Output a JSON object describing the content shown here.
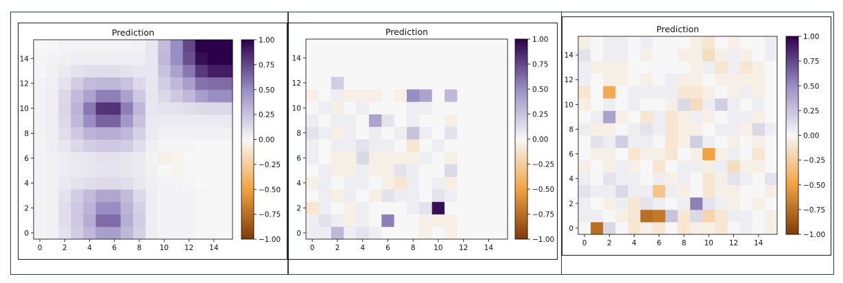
{
  "colors": {
    "cmap_low": "#7f3b08",
    "cmap_mid_low": "#f1a340",
    "cmap_zero": "#f7f7f7",
    "cmap_mid_high": "#998ec3",
    "cmap_high": "#2d004b"
  },
  "chart_data": [
    {
      "type": "heatmap",
      "title": "Prediction",
      "xlabel": "",
      "ylabel": "",
      "xlim": [
        -0.5,
        15.5
      ],
      "ylim": [
        -0.5,
        15.5
      ],
      "x_ticks": [
        "0",
        "2",
        "4",
        "6",
        "8",
        "10",
        "12",
        "14"
      ],
      "y_ticks": [
        "0",
        "2",
        "4",
        "6",
        "8",
        "10",
        "12",
        "14"
      ],
      "colorbar": {
        "range": [
          -1.0,
          1.0
        ],
        "ticks": [
          "1.00",
          "0.75",
          "0.50",
          "0.25",
          "0.00",
          "−0.25",
          "−0.50",
          "−0.75",
          "−1.00"
        ]
      },
      "grid": false,
      "values": [
        [
          0.02,
          0.03,
          0.1,
          0.2,
          0.3,
          0.42,
          0.42,
          0.3,
          0.18,
          0.05,
          0.02,
          0.02,
          0.02,
          0.01,
          0.0,
          0.0
        ],
        [
          0.02,
          0.03,
          0.12,
          0.22,
          0.35,
          0.62,
          0.62,
          0.35,
          0.2,
          0.05,
          0.02,
          0.02,
          0.02,
          0.01,
          0.0,
          0.0
        ],
        [
          0.02,
          0.03,
          0.12,
          0.22,
          0.32,
          0.5,
          0.5,
          0.32,
          0.18,
          0.05,
          0.02,
          0.02,
          0.02,
          0.01,
          0.0,
          0.0
        ],
        [
          0.02,
          0.03,
          0.1,
          0.2,
          0.28,
          0.38,
          0.38,
          0.28,
          0.15,
          0.05,
          0.02,
          0.02,
          0.02,
          0.01,
          0.0,
          0.0
        ],
        [
          0.02,
          0.03,
          0.07,
          0.1,
          0.12,
          0.14,
          0.14,
          0.12,
          0.08,
          0.04,
          0.02,
          0.02,
          0.01,
          0.0,
          0.0,
          0.0
        ],
        [
          0.02,
          0.03,
          0.05,
          0.07,
          0.08,
          0.09,
          0.09,
          0.08,
          0.06,
          0.03,
          0.0,
          -0.02,
          0.0,
          0.0,
          0.0,
          0.0
        ],
        [
          0.02,
          0.03,
          0.05,
          0.07,
          0.08,
          0.1,
          0.1,
          0.08,
          0.06,
          0.02,
          -0.05,
          -0.03,
          0.0,
          0.0,
          0.0,
          0.0
        ],
        [
          0.02,
          0.04,
          0.08,
          0.15,
          0.2,
          0.22,
          0.22,
          0.2,
          0.12,
          0.04,
          0.01,
          0.01,
          0.01,
          0.0,
          0.0,
          0.0
        ],
        [
          0.02,
          0.05,
          0.12,
          0.22,
          0.32,
          0.35,
          0.35,
          0.3,
          0.18,
          0.06,
          0.03,
          0.03,
          0.03,
          0.03,
          0.03,
          0.03
        ],
        [
          0.02,
          0.05,
          0.15,
          0.3,
          0.5,
          0.65,
          0.65,
          0.45,
          0.25,
          0.07,
          0.06,
          0.06,
          0.06,
          0.06,
          0.06,
          0.06
        ],
        [
          0.02,
          0.05,
          0.16,
          0.32,
          0.58,
          0.82,
          0.82,
          0.55,
          0.3,
          0.08,
          0.1,
          0.1,
          0.12,
          0.14,
          0.15,
          0.15
        ],
        [
          0.02,
          0.05,
          0.15,
          0.28,
          0.4,
          0.55,
          0.55,
          0.4,
          0.22,
          0.08,
          0.15,
          0.22,
          0.3,
          0.42,
          0.5,
          0.5
        ],
        [
          0.02,
          0.04,
          0.1,
          0.2,
          0.28,
          0.3,
          0.3,
          0.25,
          0.15,
          0.08,
          0.2,
          0.3,
          0.42,
          0.6,
          0.62,
          0.62
        ],
        [
          0.01,
          0.03,
          0.06,
          0.1,
          0.12,
          0.12,
          0.12,
          0.1,
          0.08,
          0.08,
          0.25,
          0.4,
          0.58,
          0.8,
          0.9,
          0.9
        ],
        [
          0.01,
          0.02,
          0.03,
          0.05,
          0.05,
          0.05,
          0.05,
          0.05,
          0.05,
          0.08,
          0.3,
          0.5,
          0.72,
          0.95,
          1.0,
          1.0
        ],
        [
          0.0,
          0.01,
          0.02,
          0.02,
          0.02,
          0.02,
          0.02,
          0.02,
          0.03,
          0.08,
          0.28,
          0.5,
          0.75,
          1.0,
          1.0,
          1.0
        ]
      ]
    },
    {
      "type": "heatmap",
      "title": "Prediction",
      "xlabel": "",
      "ylabel": "",
      "xlim": [
        -0.5,
        15.5
      ],
      "ylim": [
        -0.5,
        15.5
      ],
      "x_ticks": [
        "0",
        "2",
        "4",
        "6",
        "8",
        "10",
        "12",
        "14"
      ],
      "y_ticks": [
        "0",
        "2",
        "4",
        "6",
        "8",
        "10",
        "12",
        "14"
      ],
      "colorbar": {
        "range": [
          -1.0,
          1.0
        ],
        "ticks": [
          "1.00",
          "0.75",
          "0.50",
          "0.25",
          "0.00",
          "−0.25",
          "−0.50",
          "−0.75",
          "−1.00"
        ]
      },
      "grid": false,
      "values": [
        [
          0.05,
          0.05,
          0.3,
          0.05,
          0.1,
          0.05,
          0.0,
          0.0,
          0.0,
          -0.05,
          0.0,
          -0.05,
          0.0,
          0.0,
          0.0,
          0.0
        ],
        [
          0.05,
          0.1,
          0.05,
          -0.05,
          0.05,
          0.0,
          0.55,
          0.0,
          0.0,
          -0.05,
          -0.05,
          -0.05,
          0.0,
          0.0,
          0.0,
          0.0
        ],
        [
          -0.1,
          0.05,
          0.0,
          -0.05,
          0.05,
          0.0,
          0.0,
          0.0,
          0.05,
          0.1,
          0.95,
          0.0,
          0.0,
          0.0,
          0.0,
          0.0
        ],
        [
          0.0,
          0.05,
          -0.05,
          0.05,
          0.0,
          -0.05,
          0.1,
          0.05,
          0.05,
          0.0,
          0.1,
          0.05,
          0.0,
          0.0,
          0.0,
          0.0
        ],
        [
          -0.05,
          0.05,
          0.0,
          0.05,
          0.05,
          0.0,
          -0.05,
          -0.1,
          0.05,
          0.0,
          0.05,
          -0.05,
          0.0,
          0.0,
          0.0,
          0.0
        ],
        [
          0.0,
          0.05,
          -0.05,
          -0.05,
          0.05,
          -0.05,
          -0.05,
          0.1,
          0.05,
          0.0,
          0.0,
          0.15,
          0.0,
          0.0,
          0.0,
          0.0
        ],
        [
          0.05,
          0.0,
          -0.05,
          -0.05,
          0.15,
          -0.05,
          -0.05,
          -0.05,
          -0.05,
          0.05,
          0.0,
          -0.05,
          0.0,
          0.0,
          0.0,
          0.0
        ],
        [
          0.05,
          0.0,
          0.05,
          0.05,
          0.1,
          0.05,
          0.05,
          0.0,
          -0.1,
          0.0,
          0.05,
          0.0,
          0.0,
          0.0,
          0.0,
          0.0
        ],
        [
          0.1,
          0.05,
          -0.05,
          0.05,
          0.0,
          0.05,
          0.0,
          0.05,
          0.25,
          0.05,
          0.0,
          0.1,
          0.0,
          0.0,
          0.0,
          0.0
        ],
        [
          0.05,
          0.0,
          0.05,
          0.05,
          0.0,
          0.4,
          0.1,
          0.0,
          0.05,
          0.0,
          0.0,
          -0.05,
          0.0,
          0.0,
          0.0,
          0.0
        ],
        [
          0.0,
          0.05,
          -0.05,
          0.0,
          0.05,
          0.0,
          0.0,
          0.0,
          0.05,
          0.05,
          0.0,
          0.0,
          0.0,
          0.0,
          0.0,
          0.0
        ],
        [
          -0.05,
          0.0,
          0.05,
          -0.05,
          -0.05,
          -0.05,
          0.0,
          -0.05,
          0.5,
          0.4,
          0.0,
          0.3,
          0.0,
          0.0,
          0.0,
          0.0
        ],
        [
          0.0,
          0.0,
          0.2,
          0.0,
          0.0,
          0.0,
          0.0,
          0.0,
          0.0,
          0.0,
          0.0,
          0.0,
          0.0,
          0.0,
          0.0,
          0.0
        ],
        [
          0.0,
          0.0,
          0.0,
          0.0,
          0.0,
          0.0,
          0.0,
          0.0,
          0.0,
          0.0,
          0.0,
          0.0,
          0.0,
          0.0,
          0.0,
          0.0
        ],
        [
          0.0,
          0.0,
          0.0,
          0.0,
          0.0,
          0.0,
          0.0,
          0.0,
          0.0,
          0.0,
          0.0,
          0.0,
          0.0,
          0.0,
          0.0,
          0.0
        ],
        [
          0.0,
          0.0,
          0.0,
          0.0,
          0.0,
          0.0,
          0.0,
          0.0,
          0.0,
          0.0,
          0.0,
          0.0,
          0.0,
          0.0,
          0.0,
          0.0
        ]
      ]
    },
    {
      "type": "heatmap",
      "title": "Prediction",
      "xlabel": "",
      "ylabel": "",
      "xlim": [
        -0.5,
        15.5
      ],
      "ylim": [
        -0.5,
        15.5
      ],
      "x_ticks": [
        "0",
        "2",
        "4",
        "6",
        "8",
        "10",
        "12",
        "14"
      ],
      "y_ticks": [
        "0",
        "2",
        "4",
        "6",
        "8",
        "10",
        "12",
        "14"
      ],
      "colorbar": {
        "range": [
          -1.0,
          1.0
        ],
        "ticks": [
          "1.00",
          "0.75",
          "0.50",
          "0.25",
          "0.00",
          "−0.25",
          "−0.50",
          "−0.75",
          "−1.00"
        ]
      },
      "grid": false,
      "values": [
        [
          0.0,
          -0.75,
          0.15,
          0.0,
          -0.1,
          -0.05,
          -0.1,
          0.0,
          -0.1,
          -0.05,
          -0.05,
          -0.1,
          0.0,
          0.05,
          0.0,
          -0.05
        ],
        [
          0.05,
          0.05,
          0.0,
          -0.05,
          -0.1,
          -0.75,
          -0.7,
          0.25,
          -0.1,
          0.15,
          -0.2,
          -0.1,
          0.05,
          0.05,
          0.0,
          -0.05
        ],
        [
          0.05,
          0.0,
          -0.05,
          0.05,
          -0.1,
          0.1,
          0.05,
          0.0,
          0.05,
          0.55,
          0.1,
          0.05,
          -0.05,
          0.0,
          -0.05,
          0.0
        ],
        [
          0.1,
          0.05,
          0.05,
          0.15,
          0.05,
          0.05,
          -0.3,
          0.05,
          -0.05,
          0.0,
          -0.1,
          -0.05,
          -0.05,
          0.0,
          0.0,
          -0.05
        ],
        [
          0.05,
          0.0,
          0.1,
          0.05,
          0.05,
          0.0,
          0.05,
          -0.05,
          0.05,
          0.0,
          -0.1,
          -0.05,
          0.1,
          0.05,
          0.0,
          0.1
        ],
        [
          -0.05,
          0.0,
          -0.05,
          0.05,
          -0.05,
          0.0,
          -0.1,
          0.0,
          0.05,
          0.05,
          -0.05,
          0.05,
          -0.15,
          -0.05,
          -0.05,
          0.0
        ],
        [
          0.0,
          -0.05,
          -0.05,
          0.0,
          -0.1,
          -0.05,
          -0.05,
          -0.1,
          0.0,
          -0.05,
          -0.5,
          -0.05,
          0.05,
          0.0,
          -0.1,
          0.0
        ],
        [
          0.0,
          0.1,
          0.05,
          0.2,
          0.05,
          0.05,
          0.0,
          -0.1,
          -0.05,
          0.2,
          0.05,
          0.0,
          -0.05,
          0.0,
          -0.05,
          0.0
        ],
        [
          0.05,
          -0.05,
          -0.05,
          0.0,
          0.05,
          0.1,
          0.05,
          -0.1,
          -0.05,
          -0.05,
          0.0,
          0.05,
          0.05,
          -0.05,
          0.15,
          0.05
        ],
        [
          0.0,
          0.05,
          0.4,
          -0.05,
          0.0,
          -0.1,
          0.05,
          -0.1,
          -0.05,
          0.05,
          -0.05,
          0.0,
          0.05,
          0.05,
          -0.05,
          0.0
        ],
        [
          -0.05,
          0.0,
          0.05,
          0.0,
          0.05,
          0.0,
          0.0,
          -0.05,
          0.15,
          -0.15,
          0.05,
          0.2,
          0.05,
          0.0,
          0.05,
          0.0
        ],
        [
          -0.1,
          0.0,
          -0.45,
          0.0,
          0.05,
          0.05,
          0.05,
          0.05,
          -0.1,
          -0.1,
          -0.05,
          0.0,
          -0.05,
          0.05,
          -0.05,
          0.0
        ],
        [
          0.05,
          0.0,
          -0.05,
          -0.05,
          0.0,
          -0.05,
          0.0,
          0.05,
          -0.05,
          -0.05,
          0.0,
          -0.05,
          -0.05,
          -0.05,
          -0.05,
          0.0
        ],
        [
          0.05,
          -0.05,
          -0.05,
          -0.05,
          0.0,
          0.0,
          0.0,
          0.0,
          0.0,
          -0.05,
          0.05,
          -0.1,
          0.05,
          -0.1,
          -0.05,
          0.0
        ],
        [
          0.1,
          0.0,
          0.05,
          0.05,
          0.0,
          -0.05,
          0.0,
          0.0,
          -0.05,
          -0.05,
          -0.15,
          -0.05,
          0.05,
          -0.05,
          0.0,
          0.05
        ],
        [
          -0.05,
          0.0,
          0.05,
          0.05,
          0.0,
          0.05,
          0.0,
          0.0,
          0.0,
          -0.05,
          -0.1,
          0.0,
          -0.05,
          0.0,
          0.0,
          0.05
        ]
      ]
    }
  ]
}
